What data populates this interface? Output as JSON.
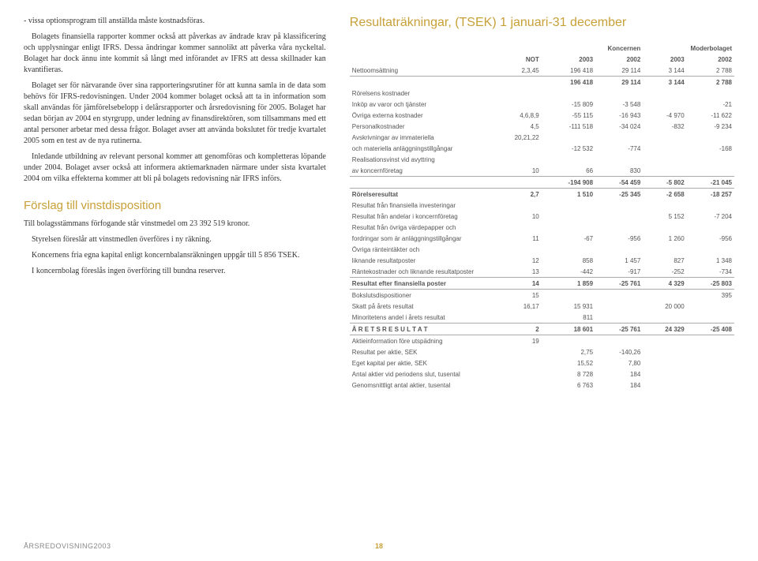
{
  "left": {
    "p1": "- vissa optionsprogram till anställda måste kostnadsföras.",
    "p2": "Bolagets finansiella rapporter kommer också att påverkas av ändrade krav på klassificering och upplysningar enligt IFRS. Dessa ändringar kommer sannolikt att påverka våra nyckeltal. Bolaget har dock ännu inte kommit så långt med införandet av IFRS att dessa skillnader kan kvantifieras.",
    "p3": "Bolaget ser för närvarande över sina rapporteringsrutiner för att kunna samla in de data som behövs för IFRS-redovisningen. Under 2004 kommer bolaget också att ta in information som skall användas för jämförelsebelopp i delårsrapporter och årsredovisning för 2005. Bolaget har sedan början av 2004 en styrgrupp, under ledning av finansdirektören, som tillsammans med ett antal personer arbetar med dessa frågor. Bolaget avser att använda bokslutet för tredje kvartalet 2005 som en test av de nya rutinerna.",
    "p4": "Inledande utbildning av relevant personal kommer att genomföras och kompletteras löpande under 2004. Bolaget avser också att informera aktiemarknaden närmare under sista kvartalet 2004 om vilka effekterna kommer att bli på bolagets redovisning när IFRS införs.",
    "h2": "Förslag till vinstdisposition",
    "p5": "Till bolagsstämmans förfogande står vinstmedel om 23 392 519 kronor.",
    "p6": "Styrelsen föreslår att vinstmedlen överföres i ny räkning.",
    "p7": "Koncernens fria egna kapital enligt koncernbalansräkningen uppgår till 5 856 TSEK.",
    "p8": "I koncernbolag föreslås ingen överföring till bundna reserver."
  },
  "right": {
    "title": "Resultaträkningar, (TSEK) 1 januari-31 december",
    "groupA": "Koncernen",
    "groupB": "Moderbolaget",
    "cols": [
      "",
      "NOT",
      "2003",
      "2002",
      "2003",
      "2002"
    ],
    "rows": [
      [
        "Nettoomsättning",
        "2,3,45",
        "196 418",
        "29 114",
        "3 144",
        "2 788"
      ],
      [
        "",
        "",
        "196 418",
        "29 114",
        "3 144",
        "2 788"
      ],
      [
        "Rörelsens kostnader",
        "",
        "",
        "",
        "",
        ""
      ],
      [
        "Inköp av varor och tjänster",
        "",
        "-15 809",
        "-3 548",
        "",
        "-21"
      ],
      [
        "Övriga externa kostnader",
        "4,6,8,9",
        "-55 115",
        "-16 943",
        "-4 970",
        "-11 622"
      ],
      [
        "Personalkostnader",
        "4,5",
        "-111 518",
        "-34 024",
        "-832",
        "-9 234"
      ],
      [
        "Avskrivningar av immateriella",
        "20,21,22",
        "",
        "",
        "",
        ""
      ],
      [
        "och materiella anläggningstillgångar",
        "",
        "-12 532",
        "-774",
        "",
        "-168"
      ],
      [
        "Realisationsvinst vid avyttring",
        "",
        "",
        "",
        "",
        ""
      ],
      [
        "av koncernföretag",
        "10",
        "66",
        "830",
        "",
        ""
      ],
      [
        "",
        "",
        "-194 908",
        "-54 459",
        "-5 802",
        "-21 045"
      ],
      [
        "Rörelseresultat",
        "2,7",
        "1 510",
        "-25 345",
        "-2 658",
        "-18 257"
      ],
      [
        "Resultat från finansiella investeringar",
        "",
        "",
        "",
        "",
        ""
      ],
      [
        "Resultat från andelar i koncernföretag",
        "10",
        "",
        "",
        "5 152",
        "-7 204"
      ],
      [
        "Resultat från övriga värdepapper och",
        "",
        "",
        "",
        "",
        ""
      ],
      [
        "fordringar som är anläggningstillgångar",
        "11",
        "-67",
        "-956",
        "1 260",
        "-956"
      ],
      [
        "Övriga ränteintäkter och",
        "",
        "",
        "",
        "",
        ""
      ],
      [
        "liknande resultatposter",
        "12",
        "858",
        "1 457",
        "827",
        "1 348"
      ],
      [
        "Räntekostnader och liknande resultatposter",
        "13",
        "-442",
        "-917",
        "-252",
        "-734"
      ],
      [
        "Resultat efter finansiella poster",
        "14",
        "1 859",
        "-25 761",
        "4 329",
        "-25 803"
      ],
      [
        "Bokslutsdispositioner",
        "15",
        "",
        "",
        "",
        "395"
      ],
      [
        "Skatt på årets resultat",
        "16,17",
        "15 931",
        "",
        "20 000",
        ""
      ],
      [
        "Minoritetens andel i årets resultat",
        "",
        "811",
        "",
        "",
        ""
      ],
      [
        "Å R E T S  R E S U L T A T",
        "2",
        "18 601",
        "-25 761",
        "24 329",
        "-25 408"
      ],
      [
        "Aktieinformation före utspädning",
        "19",
        "",
        "",
        "",
        ""
      ],
      [
        "Resultat per aktie, SEK",
        "",
        "2,75",
        "-140,26",
        "",
        ""
      ],
      [
        "Eget kapital per aktie, SEK",
        "",
        "15,52",
        "7,80",
        "",
        ""
      ],
      [
        "Antal aktier vid periodens slut, tusental",
        "",
        "8 728",
        "184",
        "",
        ""
      ],
      [
        "Genomsnittligt antal aktier, tusental",
        "",
        "6 763",
        "184",
        "",
        ""
      ]
    ],
    "boldRows": [
      1,
      10,
      11,
      19,
      23
    ],
    "divRows": [
      1,
      10,
      11,
      19,
      20,
      23,
      24
    ]
  },
  "footer": {
    "year": "ÅRSREDOVISNING2003",
    "page": "18"
  }
}
